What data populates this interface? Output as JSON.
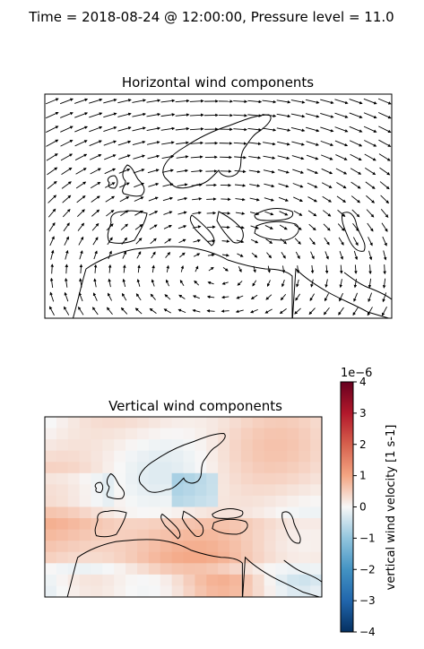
{
  "figure": {
    "suptitle": "Time = 2018-08-24 @ 12:00:00, Pressure level = 11.0"
  },
  "chart_data": [
    {
      "type": "quiver",
      "title": "Horizontal wind components",
      "grid": false,
      "coastlines": true
    },
    {
      "type": "heatmap",
      "title": "Vertical wind components",
      "colormap": "RdBu_r",
      "coastlines": true,
      "colorbar": {
        "label": "vertical wind velocity [1 s-1]",
        "scale_label": "1e−6",
        "range": [
          -4,
          4
        ],
        "ticks": [
          "−4",
          "−3",
          "−2",
          "−1",
          "0",
          "1",
          "2",
          "3",
          "4"
        ],
        "tick_values": [
          -4,
          -3,
          -2,
          -1,
          0,
          1,
          2,
          3,
          4
        ]
      }
    }
  ],
  "colors": {
    "coastline": "#000000",
    "arrow": "#000000",
    "cmap_low": "#053061",
    "cmap_mid": "#f7f7f7",
    "cmap_high": "#67001f"
  }
}
